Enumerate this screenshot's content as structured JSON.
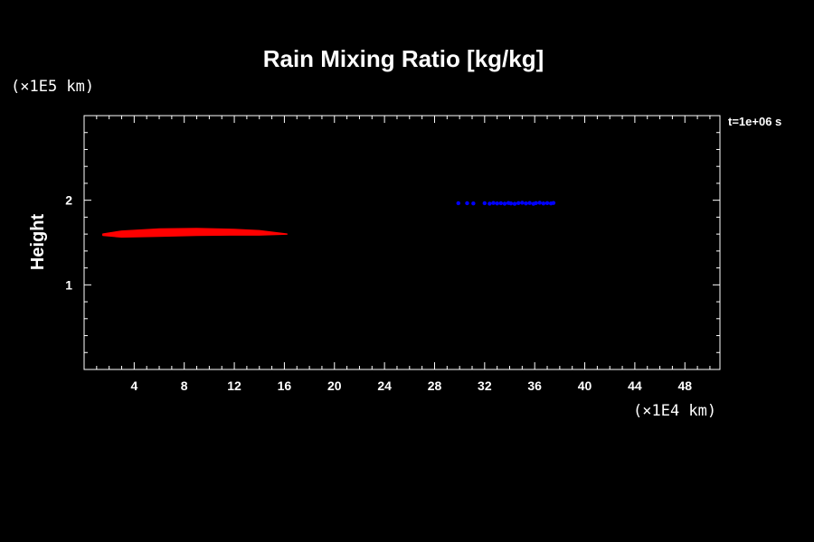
{
  "chart_data": {
    "type": "scatter",
    "title": "Rain Mixing Ratio [kg/kg]",
    "xlabel": "",
    "ylabel": "Height",
    "x_unit": "(×1E4 km)",
    "y_unit": "(×1E5 km)",
    "time_label": "t=1e+06 s",
    "xlim": [
      0,
      50.8
    ],
    "ylim": [
      0,
      3
    ],
    "x_ticks": [
      4,
      8,
      12,
      16,
      20,
      24,
      28,
      32,
      36,
      40,
      44,
      48
    ],
    "y_ticks": [
      1,
      2
    ],
    "x_minor_step": 1,
    "y_minor_step": 0.2,
    "grid": false,
    "series": [
      {
        "color": "#ff0000",
        "shape": "band",
        "x_start": 1.5,
        "x_end": 16.2,
        "upper": [
          [
            1.5,
            1.6
          ],
          [
            3,
            1.635
          ],
          [
            6,
            1.66
          ],
          [
            9,
            1.665
          ],
          [
            12,
            1.655
          ],
          [
            14,
            1.64
          ],
          [
            16.2,
            1.6
          ]
        ],
        "lower": [
          [
            16.2,
            1.6
          ],
          [
            14,
            1.59
          ],
          [
            12,
            1.59
          ],
          [
            9,
            1.585
          ],
          [
            6,
            1.575
          ],
          [
            3,
            1.565
          ],
          [
            1.5,
            1.585
          ]
        ]
      },
      {
        "color": "#0000ff",
        "shape": "points",
        "points": [
          [
            29.9,
            1.965
          ],
          [
            30.6,
            1.965
          ],
          [
            31.1,
            1.962
          ],
          [
            32.0,
            1.965
          ],
          [
            32.4,
            1.96
          ],
          [
            32.7,
            1.968
          ],
          [
            33.0,
            1.962
          ],
          [
            33.3,
            1.965
          ],
          [
            33.6,
            1.96
          ],
          [
            33.9,
            1.968
          ],
          [
            34.1,
            1.962
          ],
          [
            34.4,
            1.958
          ],
          [
            34.7,
            1.966
          ],
          [
            35.0,
            1.97
          ],
          [
            35.3,
            1.962
          ],
          [
            35.6,
            1.968
          ],
          [
            35.9,
            1.958
          ],
          [
            36.1,
            1.966
          ],
          [
            36.4,
            1.97
          ],
          [
            36.7,
            1.962
          ],
          [
            37.0,
            1.966
          ],
          [
            37.3,
            1.962
          ],
          [
            37.5,
            1.968
          ]
        ]
      }
    ]
  }
}
